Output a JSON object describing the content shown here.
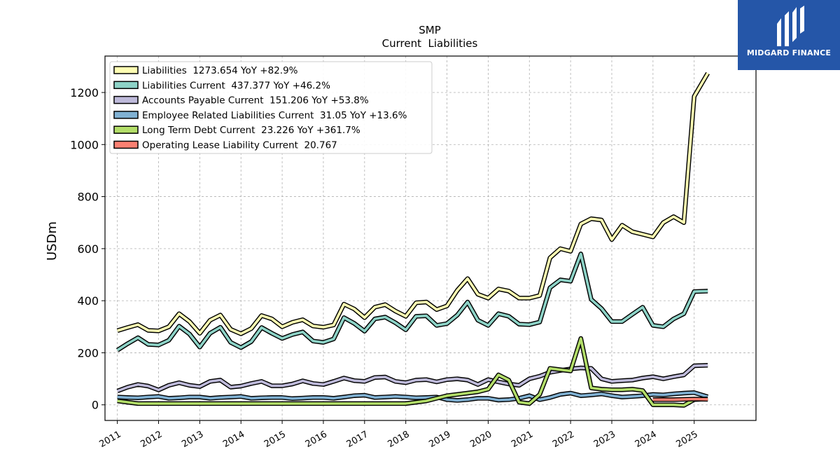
{
  "brand": {
    "name": "MIDGARD FINANCE"
  },
  "chart_data": {
    "type": "line",
    "title": "SMP",
    "subtitle": "Current  Liabilities",
    "xlabel": "",
    "ylabel": "USDm",
    "xlim": [
      2010.7,
      2026.5
    ],
    "ylim": [
      -60,
      1340
    ],
    "yticks": [
      0,
      200,
      400,
      600,
      800,
      1000,
      1200
    ],
    "xticks": [
      "2011",
      "2012",
      "2013",
      "2014",
      "2015",
      "2016",
      "2017",
      "2018",
      "2019",
      "2020",
      "2021",
      "2022",
      "2023",
      "2024",
      "2025"
    ],
    "grid": true,
    "legend_position": "top-left",
    "series": [
      {
        "name": "Liabilities  1273.654 YoY +82.9%",
        "color": "#ffffb3",
        "points": [
          [
            2011.0,
            285
          ],
          [
            2011.25,
            297
          ],
          [
            2011.5,
            308
          ],
          [
            2011.75,
            286
          ],
          [
            2012.0,
            284
          ],
          [
            2012.25,
            300
          ],
          [
            2012.5,
            350
          ],
          [
            2012.75,
            320
          ],
          [
            2013.0,
            275
          ],
          [
            2013.25,
            325
          ],
          [
            2013.5,
            345
          ],
          [
            2013.75,
            290
          ],
          [
            2014.0,
            273
          ],
          [
            2014.25,
            293
          ],
          [
            2014.5,
            343
          ],
          [
            2014.75,
            330
          ],
          [
            2015.0,
            300
          ],
          [
            2015.25,
            317
          ],
          [
            2015.5,
            327
          ],
          [
            2015.75,
            303
          ],
          [
            2016.0,
            298
          ],
          [
            2016.25,
            307
          ],
          [
            2016.5,
            387
          ],
          [
            2016.75,
            368
          ],
          [
            2017.0,
            335
          ],
          [
            2017.25,
            375
          ],
          [
            2017.5,
            385
          ],
          [
            2017.75,
            360
          ],
          [
            2018.0,
            340
          ],
          [
            2018.25,
            392
          ],
          [
            2018.5,
            395
          ],
          [
            2018.75,
            366
          ],
          [
            2019.0,
            380
          ],
          [
            2019.25,
            440
          ],
          [
            2019.5,
            485
          ],
          [
            2019.75,
            425
          ],
          [
            2020.0,
            410
          ],
          [
            2020.25,
            445
          ],
          [
            2020.5,
            437
          ],
          [
            2020.75,
            410
          ],
          [
            2021.0,
            410
          ],
          [
            2021.25,
            420
          ],
          [
            2021.5,
            565
          ],
          [
            2021.75,
            600
          ],
          [
            2022.0,
            590
          ],
          [
            2022.25,
            695
          ],
          [
            2022.5,
            715
          ],
          [
            2022.75,
            710
          ],
          [
            2023.0,
            635
          ],
          [
            2023.25,
            690
          ],
          [
            2023.5,
            665
          ],
          [
            2023.75,
            655
          ],
          [
            2024.0,
            645
          ],
          [
            2024.25,
            700
          ],
          [
            2024.5,
            723
          ],
          [
            2024.75,
            700
          ],
          [
            2025.0,
            1185
          ],
          [
            2025.33,
            1274
          ]
        ]
      },
      {
        "name": "Liabilities Current  437.377 YoY +46.2%",
        "color": "#8dd3c7",
        "points": [
          [
            2011.0,
            210
          ],
          [
            2011.25,
            235
          ],
          [
            2011.5,
            258
          ],
          [
            2011.75,
            232
          ],
          [
            2012.0,
            230
          ],
          [
            2012.25,
            248
          ],
          [
            2012.5,
            302
          ],
          [
            2012.75,
            272
          ],
          [
            2013.0,
            222
          ],
          [
            2013.25,
            275
          ],
          [
            2013.5,
            298
          ],
          [
            2013.75,
            240
          ],
          [
            2014.0,
            220
          ],
          [
            2014.25,
            243
          ],
          [
            2014.5,
            297
          ],
          [
            2014.75,
            275
          ],
          [
            2015.0,
            255
          ],
          [
            2015.25,
            270
          ],
          [
            2015.5,
            280
          ],
          [
            2015.75,
            245
          ],
          [
            2016.0,
            240
          ],
          [
            2016.25,
            253
          ],
          [
            2016.5,
            335
          ],
          [
            2016.75,
            313
          ],
          [
            2017.0,
            283
          ],
          [
            2017.25,
            330
          ],
          [
            2017.5,
            337
          ],
          [
            2017.75,
            315
          ],
          [
            2018.0,
            288
          ],
          [
            2018.25,
            340
          ],
          [
            2018.5,
            342
          ],
          [
            2018.75,
            305
          ],
          [
            2019.0,
            312
          ],
          [
            2019.25,
            345
          ],
          [
            2019.5,
            395
          ],
          [
            2019.75,
            325
          ],
          [
            2020.0,
            305
          ],
          [
            2020.25,
            350
          ],
          [
            2020.5,
            340
          ],
          [
            2020.75,
            310
          ],
          [
            2021.0,
            308
          ],
          [
            2021.25,
            318
          ],
          [
            2021.5,
            450
          ],
          [
            2021.75,
            480
          ],
          [
            2022.0,
            475
          ],
          [
            2022.25,
            580
          ],
          [
            2022.5,
            405
          ],
          [
            2022.75,
            370
          ],
          [
            2023.0,
            320
          ],
          [
            2023.25,
            320
          ],
          [
            2023.5,
            348
          ],
          [
            2023.75,
            375
          ],
          [
            2024.0,
            305
          ],
          [
            2024.25,
            300
          ],
          [
            2024.5,
            330
          ],
          [
            2024.75,
            350
          ],
          [
            2025.0,
            435
          ],
          [
            2025.33,
            437
          ]
        ]
      },
      {
        "name": "Accounts Payable Current  151.206 YoY +53.8%",
        "color": "#bebada",
        "points": [
          [
            2011.0,
            53
          ],
          [
            2011.25,
            68
          ],
          [
            2011.5,
            78
          ],
          [
            2011.75,
            72
          ],
          [
            2012.0,
            57
          ],
          [
            2012.25,
            75
          ],
          [
            2012.5,
            85
          ],
          [
            2012.75,
            75
          ],
          [
            2013.0,
            70
          ],
          [
            2013.25,
            90
          ],
          [
            2013.5,
            95
          ],
          [
            2013.75,
            68
          ],
          [
            2014.0,
            72
          ],
          [
            2014.25,
            82
          ],
          [
            2014.5,
            90
          ],
          [
            2014.75,
            73
          ],
          [
            2015.0,
            73
          ],
          [
            2015.25,
            80
          ],
          [
            2015.5,
            92
          ],
          [
            2015.75,
            82
          ],
          [
            2016.0,
            78
          ],
          [
            2016.25,
            90
          ],
          [
            2016.5,
            103
          ],
          [
            2016.75,
            93
          ],
          [
            2017.0,
            90
          ],
          [
            2017.25,
            105
          ],
          [
            2017.5,
            107
          ],
          [
            2017.75,
            90
          ],
          [
            2018.0,
            85
          ],
          [
            2018.25,
            95
          ],
          [
            2018.5,
            97
          ],
          [
            2018.75,
            88
          ],
          [
            2019.0,
            97
          ],
          [
            2019.25,
            100
          ],
          [
            2019.5,
            95
          ],
          [
            2019.75,
            78
          ],
          [
            2020.0,
            97
          ],
          [
            2020.25,
            88
          ],
          [
            2020.5,
            80
          ],
          [
            2020.75,
            75
          ],
          [
            2021.0,
            100
          ],
          [
            2021.25,
            110
          ],
          [
            2021.5,
            125
          ],
          [
            2021.75,
            132
          ],
          [
            2022.0,
            138
          ],
          [
            2022.25,
            142
          ],
          [
            2022.5,
            140
          ],
          [
            2022.75,
            100
          ],
          [
            2023.0,
            90
          ],
          [
            2023.25,
            93
          ],
          [
            2023.5,
            95
          ],
          [
            2023.75,
            103
          ],
          [
            2024.0,
            108
          ],
          [
            2024.25,
            100
          ],
          [
            2024.5,
            108
          ],
          [
            2024.75,
            115
          ],
          [
            2025.0,
            150
          ],
          [
            2025.33,
            152
          ]
        ]
      },
      {
        "name": "Employee Related Liabilities Current  31.05 YoY +13.6%",
        "color": "#80b1d3",
        "points": [
          [
            2011.0,
            30
          ],
          [
            2011.25,
            28
          ],
          [
            2011.5,
            27
          ],
          [
            2011.75,
            30
          ],
          [
            2012.0,
            32
          ],
          [
            2012.25,
            25
          ],
          [
            2012.5,
            27
          ],
          [
            2012.75,
            30
          ],
          [
            2013.0,
            30
          ],
          [
            2013.25,
            25
          ],
          [
            2013.5,
            28
          ],
          [
            2013.75,
            30
          ],
          [
            2014.0,
            32
          ],
          [
            2014.25,
            25
          ],
          [
            2014.5,
            27
          ],
          [
            2014.75,
            28
          ],
          [
            2015.0,
            28
          ],
          [
            2015.25,
            24
          ],
          [
            2015.5,
            26
          ],
          [
            2015.75,
            28
          ],
          [
            2016.0,
            28
          ],
          [
            2016.25,
            25
          ],
          [
            2016.5,
            30
          ],
          [
            2016.75,
            35
          ],
          [
            2017.0,
            37
          ],
          [
            2017.25,
            28
          ],
          [
            2017.5,
            30
          ],
          [
            2017.75,
            32
          ],
          [
            2018.0,
            30
          ],
          [
            2018.25,
            27
          ],
          [
            2018.5,
            28
          ],
          [
            2018.75,
            30
          ],
          [
            2019.0,
            20
          ],
          [
            2019.25,
            17
          ],
          [
            2019.5,
            20
          ],
          [
            2019.75,
            25
          ],
          [
            2020.0,
            25
          ],
          [
            2020.25,
            18
          ],
          [
            2020.5,
            20
          ],
          [
            2020.75,
            25
          ],
          [
            2021.0,
            35
          ],
          [
            2021.25,
            20
          ],
          [
            2021.5,
            28
          ],
          [
            2021.75,
            40
          ],
          [
            2022.0,
            45
          ],
          [
            2022.25,
            35
          ],
          [
            2022.5,
            38
          ],
          [
            2022.75,
            42
          ],
          [
            2023.0,
            35
          ],
          [
            2023.25,
            30
          ],
          [
            2023.5,
            32
          ],
          [
            2023.75,
            35
          ],
          [
            2024.0,
            40
          ],
          [
            2024.25,
            38
          ],
          [
            2024.5,
            42
          ],
          [
            2024.75,
            45
          ],
          [
            2025.0,
            47
          ],
          [
            2025.33,
            31
          ]
        ]
      },
      {
        "name": "Long Term Debt Current  23.226 YoY +361.7%",
        "color": "#b3de69",
        "points": [
          [
            2011.0,
            15
          ],
          [
            2011.25,
            10
          ],
          [
            2011.5,
            5
          ],
          [
            2011.75,
            5
          ],
          [
            2012.0,
            5
          ],
          [
            2012.25,
            5
          ],
          [
            2012.5,
            5
          ],
          [
            2012.75,
            5
          ],
          [
            2013.0,
            5
          ],
          [
            2013.25,
            5
          ],
          [
            2013.5,
            5
          ],
          [
            2013.75,
            5
          ],
          [
            2014.0,
            5
          ],
          [
            2014.25,
            5
          ],
          [
            2014.5,
            5
          ],
          [
            2014.75,
            5
          ],
          [
            2015.0,
            5
          ],
          [
            2015.25,
            5
          ],
          [
            2015.5,
            5
          ],
          [
            2015.75,
            5
          ],
          [
            2016.0,
            5
          ],
          [
            2016.25,
            5
          ],
          [
            2016.5,
            5
          ],
          [
            2016.75,
            5
          ],
          [
            2017.0,
            5
          ],
          [
            2017.25,
            5
          ],
          [
            2017.5,
            5
          ],
          [
            2017.75,
            5
          ],
          [
            2018.0,
            5
          ],
          [
            2018.25,
            10
          ],
          [
            2018.5,
            15
          ],
          [
            2018.75,
            25
          ],
          [
            2019.0,
            35
          ],
          [
            2019.25,
            40
          ],
          [
            2019.5,
            45
          ],
          [
            2019.75,
            50
          ],
          [
            2020.0,
            60
          ],
          [
            2020.25,
            115
          ],
          [
            2020.5,
            95
          ],
          [
            2020.75,
            10
          ],
          [
            2021.0,
            5
          ],
          [
            2021.25,
            40
          ],
          [
            2021.5,
            140
          ],
          [
            2021.75,
            135
          ],
          [
            2022.0,
            130
          ],
          [
            2022.25,
            255
          ],
          [
            2022.5,
            65
          ],
          [
            2022.75,
            60
          ],
          [
            2023.0,
            58
          ],
          [
            2023.25,
            58
          ],
          [
            2023.5,
            60
          ],
          [
            2023.75,
            55
          ],
          [
            2024.0,
            0
          ],
          [
            2024.25,
            0
          ],
          [
            2024.5,
            0
          ],
          [
            2024.75,
            -2
          ],
          [
            2025.0,
            20
          ],
          [
            2025.33,
            23
          ]
        ]
      },
      {
        "name": "Operating Lease Liability Current  20.767",
        "color": "#fb8072",
        "points": [
          [
            2024.0,
            20
          ],
          [
            2024.25,
            20
          ],
          [
            2024.5,
            20
          ],
          [
            2024.75,
            21
          ],
          [
            2025.0,
            22
          ],
          [
            2025.33,
            21
          ]
        ]
      }
    ]
  }
}
